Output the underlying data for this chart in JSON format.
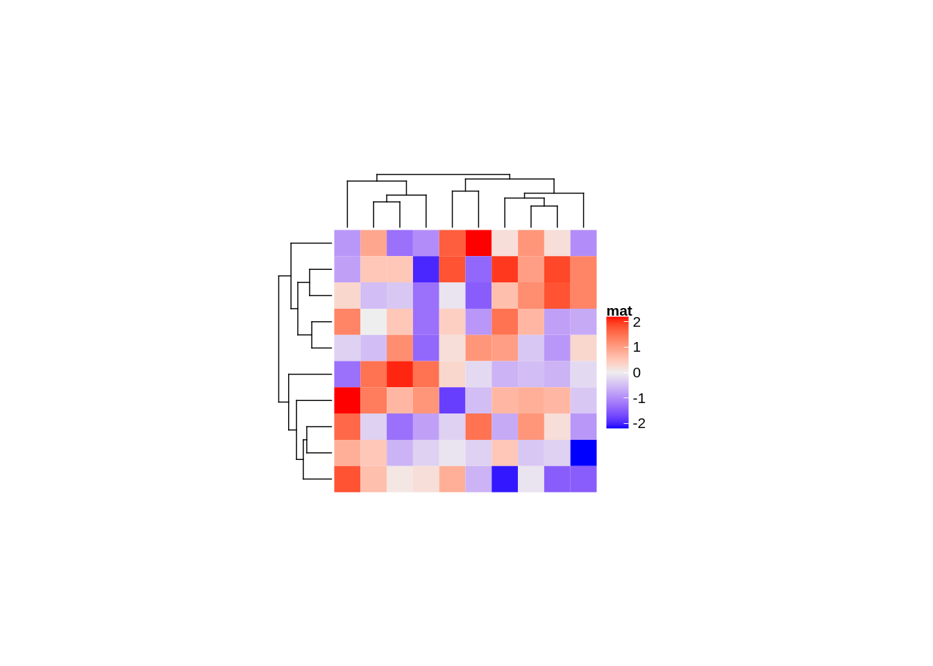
{
  "chart_data": {
    "type": "heatmap",
    "clabel": "mat",
    "categories": [
      null,
      null,
      null,
      null,
      null,
      null,
      null,
      null,
      null,
      null
    ],
    "y_categories": [
      null,
      null,
      null,
      null,
      null,
      null,
      null,
      null,
      null,
      null
    ],
    "cells": [
      [
        -0.9,
        0.9,
        -1.3,
        -1.0,
        1.7,
        2.2,
        0.2,
        1.1,
        0.2,
        -1.0
      ],
      [
        -0.8,
        0.5,
        0.5,
        -2.0,
        1.8,
        -1.4,
        2.0,
        1.0,
        1.9,
        1.3
      ],
      [
        0.3,
        -0.5,
        -0.4,
        -1.3,
        -0.1,
        -1.5,
        0.6,
        1.2,
        1.8,
        1.3
      ],
      [
        1.3,
        0.0,
        0.5,
        -1.3,
        0.4,
        -0.9,
        1.5,
        0.7,
        -0.8,
        -0.7
      ],
      [
        -0.3,
        -0.5,
        1.2,
        -1.4,
        0.2,
        1.1,
        1.0,
        -0.4,
        -0.9,
        0.3
      ],
      [
        -1.3,
        1.5,
        2.1,
        1.5,
        0.3,
        -0.2,
        -0.6,
        -0.5,
        -0.6,
        -0.2
      ],
      [
        2.2,
        1.4,
        0.7,
        1.1,
        -1.8,
        -0.5,
        0.7,
        0.8,
        0.7,
        -0.4
      ],
      [
        1.6,
        -0.3,
        -1.3,
        -0.8,
        -0.3,
        1.5,
        -0.7,
        1.1,
        0.2,
        -0.9
      ],
      [
        0.8,
        0.5,
        -0.6,
        -0.3,
        -0.1,
        -0.3,
        0.5,
        -0.4,
        -0.3,
        -2.2
      ],
      [
        1.8,
        0.6,
        0.1,
        0.2,
        0.8,
        -0.6,
        -2.1,
        -0.1,
        -1.5,
        -1.5
      ]
    ],
    "colors": [
      "#0000ff",
      "#eeeeee",
      "#ff0000"
    ],
    "clim": [
      -2.2,
      2.2
    ],
    "cticks": [
      -2,
      -1,
      0,
      1,
      2
    ]
  }
}
